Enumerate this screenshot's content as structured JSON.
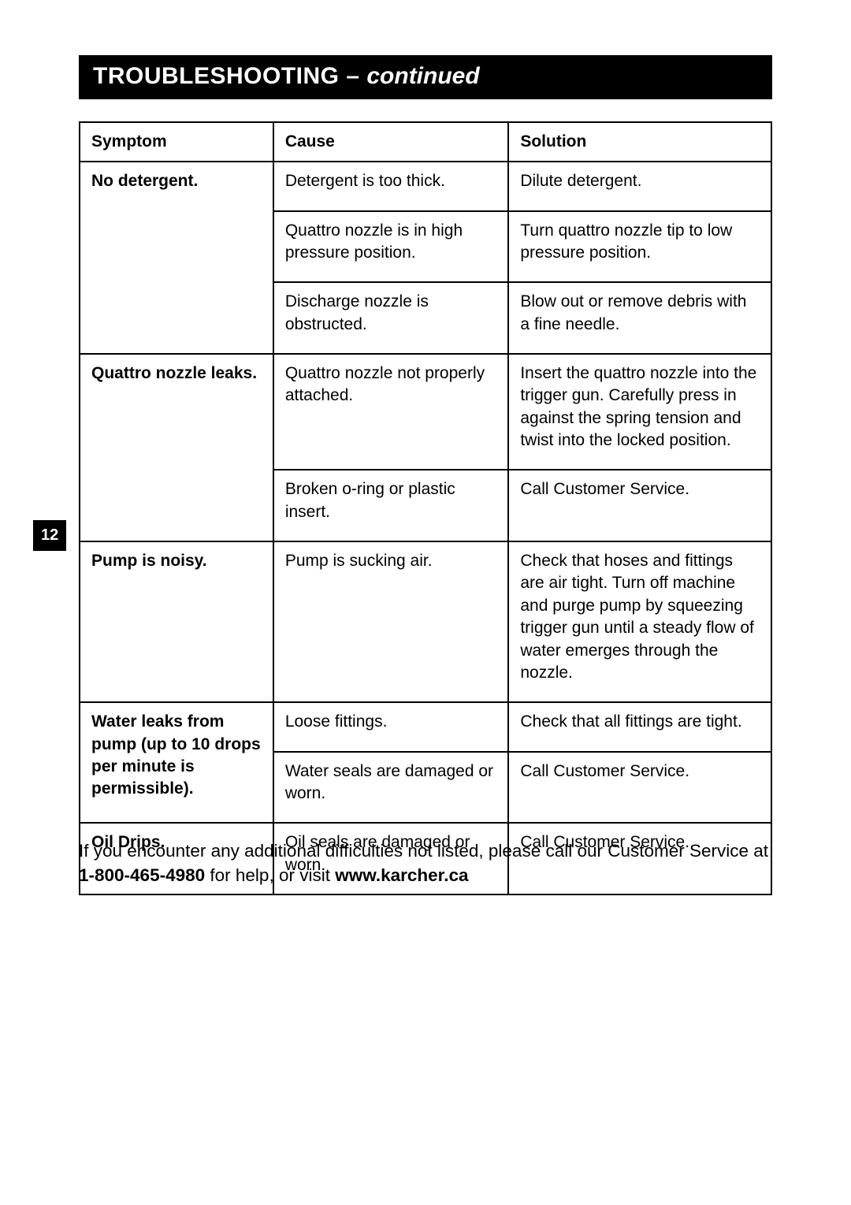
{
  "header": {
    "title_main": "TROUBLESHOOTING – ",
    "title_cont": "continued"
  },
  "page_number": "12",
  "table": {
    "headers": {
      "symptom": "Symptom",
      "cause": "Cause",
      "solution": "Solution"
    },
    "rows": [
      {
        "symptom": "No detergent.",
        "symptom_rowspan": 3,
        "cause": "Detergent is too thick.",
        "solution": "Dilute detergent."
      },
      {
        "cause": "Quattro nozzle is in high pressure position.",
        "solution": "Turn quattro nozzle tip to low pressure position."
      },
      {
        "cause": "Discharge nozzle is obstructed.",
        "solution": "Blow out or remove debris with a fine needle."
      },
      {
        "symptom": "Quattro nozzle leaks.",
        "symptom_rowspan": 2,
        "cause": "Quattro nozzle not properly attached.",
        "solution": "Insert the quattro nozzle into the trigger gun. Carefully press in against the spring tension and twist into the locked position.",
        "solution_justify": true
      },
      {
        "cause": "Broken o-ring or plastic insert.",
        "solution": "Call Customer Service."
      },
      {
        "symptom": "Pump is noisy.",
        "symptom_rowspan": 1,
        "cause": "Pump is sucking air.",
        "solution": "Check that hoses and fittings are air tight. Turn off machine and purge pump by squeezing trigger gun until a steady flow of water emerges through the nozzle."
      },
      {
        "symptom": "Water leaks from pump (up to 10 drops per minute is permissible).",
        "symptom_rowspan": 2,
        "cause": "Loose fittings.",
        "solution": "Check that all fittings are tight."
      },
      {
        "cause": "Water seals are damaged or worn.",
        "solution": "Call Customer Service."
      },
      {
        "symptom": "Oil Drips.",
        "symptom_rowspan": 1,
        "cause": "Oil seals are damaged or worn.",
        "solution": "Call Customer Service."
      }
    ]
  },
  "footer": {
    "text_before_phone": "If you encounter any additional difficulties not listed, please call our Customer Service at ",
    "phone": "1-800-465-4980",
    "text_mid": "  for help, or visit ",
    "url": "www.karcher.ca"
  }
}
